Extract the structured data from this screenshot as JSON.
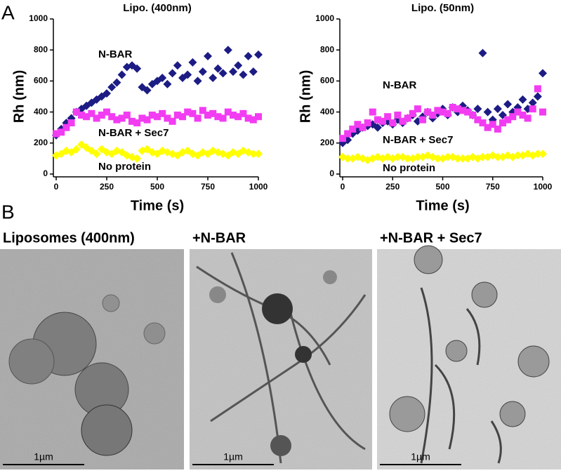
{
  "panel_labels": [
    "A",
    "B"
  ],
  "micrographs": [
    {
      "title": "Liposomes (400nm)",
      "scale_bar": "1µm"
    },
    {
      "title": "+N-BAR",
      "scale_bar": "1µm"
    },
    {
      "title": "+N-BAR + Sec7",
      "scale_bar": "1µm"
    }
  ],
  "chart_data": [
    {
      "type": "scatter",
      "title": "Lipo. (400nm)",
      "x_label": "Time (s)",
      "y_label": "Rh (nm)",
      "xlim": [
        0,
        1000
      ],
      "ylim": [
        0,
        1000
      ],
      "xticks": [
        0,
        250,
        500,
        750,
        1000
      ],
      "yticks": [
        0,
        200,
        400,
        600,
        800,
        1000
      ],
      "x": [
        0,
        25,
        50,
        75,
        100,
        125,
        150,
        175,
        200,
        225,
        250,
        275,
        300,
        325,
        350,
        375,
        400,
        425,
        450,
        475,
        500,
        525,
        550,
        575,
        600,
        625,
        650,
        675,
        700,
        725,
        750,
        775,
        800,
        825,
        850,
        875,
        900,
        925,
        950,
        975,
        1000
      ],
      "series": [
        {
          "name": "N-BAR",
          "color": "#1c1c84",
          "marker": "diamond",
          "values": [
            250,
            290,
            330,
            360,
            400,
            420,
            440,
            460,
            480,
            500,
            520,
            560,
            590,
            640,
            690,
            700,
            680,
            560,
            540,
            580,
            600,
            620,
            580,
            650,
            700,
            620,
            640,
            720,
            600,
            660,
            760,
            620,
            680,
            650,
            800,
            660,
            700,
            640,
            760,
            660,
            770
          ]
        },
        {
          "name": "N-BAR + Sec7",
          "color": "#f23cf2",
          "marker": "square",
          "values": [
            260,
            270,
            300,
            330,
            400,
            380,
            370,
            390,
            360,
            380,
            400,
            370,
            350,
            360,
            380,
            340,
            330,
            360,
            350,
            380,
            370,
            390,
            360,
            340,
            380,
            370,
            400,
            390,
            360,
            410,
            380,
            390,
            370,
            360,
            400,
            380,
            370,
            390,
            360,
            350,
            370
          ]
        },
        {
          "name": "No protein",
          "color": "#ffff00",
          "marker": "diamond",
          "values": [
            120,
            130,
            150,
            140,
            160,
            190,
            170,
            150,
            130,
            160,
            140,
            130,
            150,
            140,
            120,
            110,
            100,
            150,
            160,
            140,
            130,
            150,
            140,
            130,
            120,
            140,
            150,
            130,
            120,
            140,
            130,
            150,
            140,
            130,
            120,
            140,
            130,
            150,
            140,
            130,
            130
          ]
        }
      ]
    },
    {
      "type": "scatter",
      "title": "Lipo. (50nm)",
      "x_label": "Time (s)",
      "y_label": "Rh (nm)",
      "xlim": [
        0,
        1000
      ],
      "ylim": [
        0,
        1000
      ],
      "xticks": [
        0,
        250,
        500,
        750,
        1000
      ],
      "yticks": [
        0,
        200,
        400,
        600,
        800,
        1000
      ],
      "x": [
        0,
        25,
        50,
        75,
        100,
        125,
        150,
        175,
        200,
        225,
        250,
        275,
        300,
        325,
        350,
        375,
        400,
        425,
        450,
        475,
        500,
        525,
        550,
        575,
        600,
        625,
        650,
        675,
        700,
        725,
        750,
        775,
        800,
        825,
        850,
        875,
        900,
        925,
        950,
        975,
        1000
      ],
      "series": [
        {
          "name": "N-BAR",
          "color": "#1c1c84",
          "marker": "diamond",
          "values": [
            200,
            220,
            260,
            280,
            300,
            310,
            320,
            300,
            330,
            340,
            320,
            350,
            330,
            360,
            380,
            340,
            370,
            400,
            360,
            390,
            420,
            380,
            430,
            400,
            440,
            410,
            380,
            420,
            780,
            400,
            350,
            420,
            380,
            450,
            400,
            430,
            480,
            420,
            460,
            500,
            650
          ]
        },
        {
          "name": "N-BAR + Sec7",
          "color": "#f23cf2",
          "marker": "square",
          "values": [
            230,
            260,
            290,
            320,
            300,
            330,
            400,
            350,
            340,
            370,
            330,
            380,
            340,
            360,
            390,
            420,
            350,
            400,
            380,
            410,
            400,
            390,
            430,
            420,
            410,
            400,
            380,
            350,
            330,
            300,
            320,
            290,
            330,
            350,
            370,
            400,
            380,
            360,
            420,
            550,
            400
          ]
        },
        {
          "name": "No protein",
          "color": "#ffff00",
          "marker": "diamond",
          "values": [
            110,
            100,
            100,
            110,
            100,
            90,
            100,
            110,
            100,
            110,
            100,
            110,
            110,
            100,
            100,
            110,
            110,
            120,
            110,
            100,
            100,
            110,
            110,
            100,
            100,
            100,
            110,
            100,
            110,
            110,
            120,
            110,
            110,
            120,
            110,
            120,
            120,
            130,
            120,
            130,
            130
          ]
        }
      ]
    }
  ]
}
